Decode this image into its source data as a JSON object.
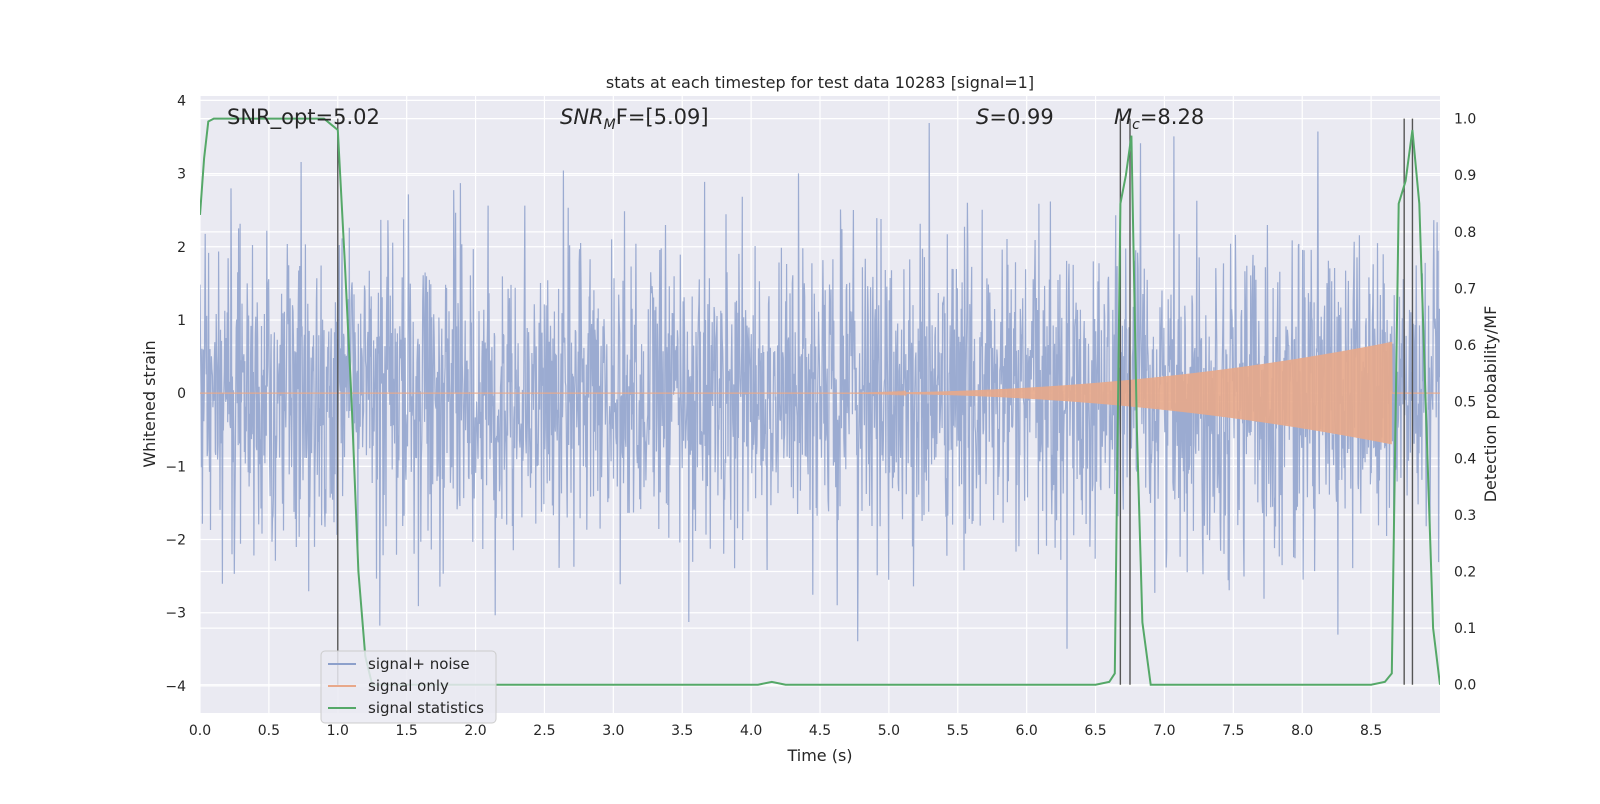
{
  "chart_data": {
    "type": "line",
    "title": "stats at each timestep for test data 10283 [signal=1]",
    "xlabel": "Time (s)",
    "ylabel_left": "Whitened strain",
    "ylabel_right": "Detection probability/MF",
    "xlim": [
      0.0,
      9.0
    ],
    "ylim_left": [
      -4.37,
      4.06
    ],
    "ylim_right": [
      -0.05,
      1.04
    ],
    "x_ticks": [
      "0.0",
      "0.5",
      "1.0",
      "1.5",
      "2.0",
      "2.5",
      "3.0",
      "3.5",
      "4.0",
      "4.5",
      "5.0",
      "5.5",
      "6.0",
      "6.5",
      "7.0",
      "7.5",
      "8.0",
      "8.5"
    ],
    "y_ticks_left": [
      "4",
      "3",
      "2",
      "1",
      "0",
      "−1",
      "−2",
      "−3",
      "−4"
    ],
    "y_ticks_right": [
      "1.0",
      "0.9",
      "0.8",
      "0.7",
      "0.6",
      "0.5",
      "0.4",
      "0.3",
      "0.2",
      "0.1",
      "0.0"
    ],
    "grid": true,
    "legend_position": "lower-left",
    "annotations": {
      "snr_opt": "SNR_opt=5.02",
      "snr_mf_sym": "SNR",
      "snr_mf_sub": "M",
      "snr_mf_rest": "F=[5.09]",
      "s_sym": "S",
      "s_rest": "=0.99",
      "mc_sym": "M",
      "mc_sub": "c",
      "mc_rest": "=8.28"
    },
    "series": [
      {
        "name": "signal+ noise",
        "color": "#8da0cb",
        "noise_envelope": [
          -3.7,
          3.7
        ],
        "typical_band": [
          -2.0,
          2.0
        ]
      },
      {
        "name": "signal only",
        "color": "#e8a88a",
        "chirp_start": 4.5,
        "chirp_end": 8.65,
        "peak_amplitude": 0.7
      },
      {
        "name": "signal statistics",
        "color": "#55a868",
        "x": [
          0.0,
          0.03,
          0.06,
          0.1,
          0.15,
          0.3,
          0.5,
          0.7,
          0.9,
          0.95,
          1.0,
          1.05,
          1.1,
          1.15,
          1.2,
          1.25,
          1.3,
          4.05,
          4.15,
          4.25,
          6.5,
          6.6,
          6.64,
          6.68,
          6.72,
          6.76,
          6.8,
          6.84,
          6.9,
          8.5,
          8.6,
          8.65,
          8.7,
          8.75,
          8.8,
          8.85,
          8.9,
          8.95,
          9.0
        ],
        "y": [
          0.83,
          0.93,
          0.995,
          1.0,
          1.0,
          1.0,
          1.0,
          1.0,
          1.0,
          0.99,
          0.98,
          0.75,
          0.5,
          0.2,
          0.05,
          0.0,
          0.0,
          0.0,
          0.005,
          0.0,
          0.0,
          0.005,
          0.02,
          0.85,
          0.9,
          0.97,
          0.45,
          0.11,
          0.0,
          0.0,
          0.005,
          0.02,
          0.85,
          0.89,
          0.98,
          0.85,
          0.47,
          0.1,
          0.0
        ]
      }
    ],
    "vertical_markers": [
      1.0,
      6.68,
      6.75,
      8.74,
      8.8
    ]
  }
}
